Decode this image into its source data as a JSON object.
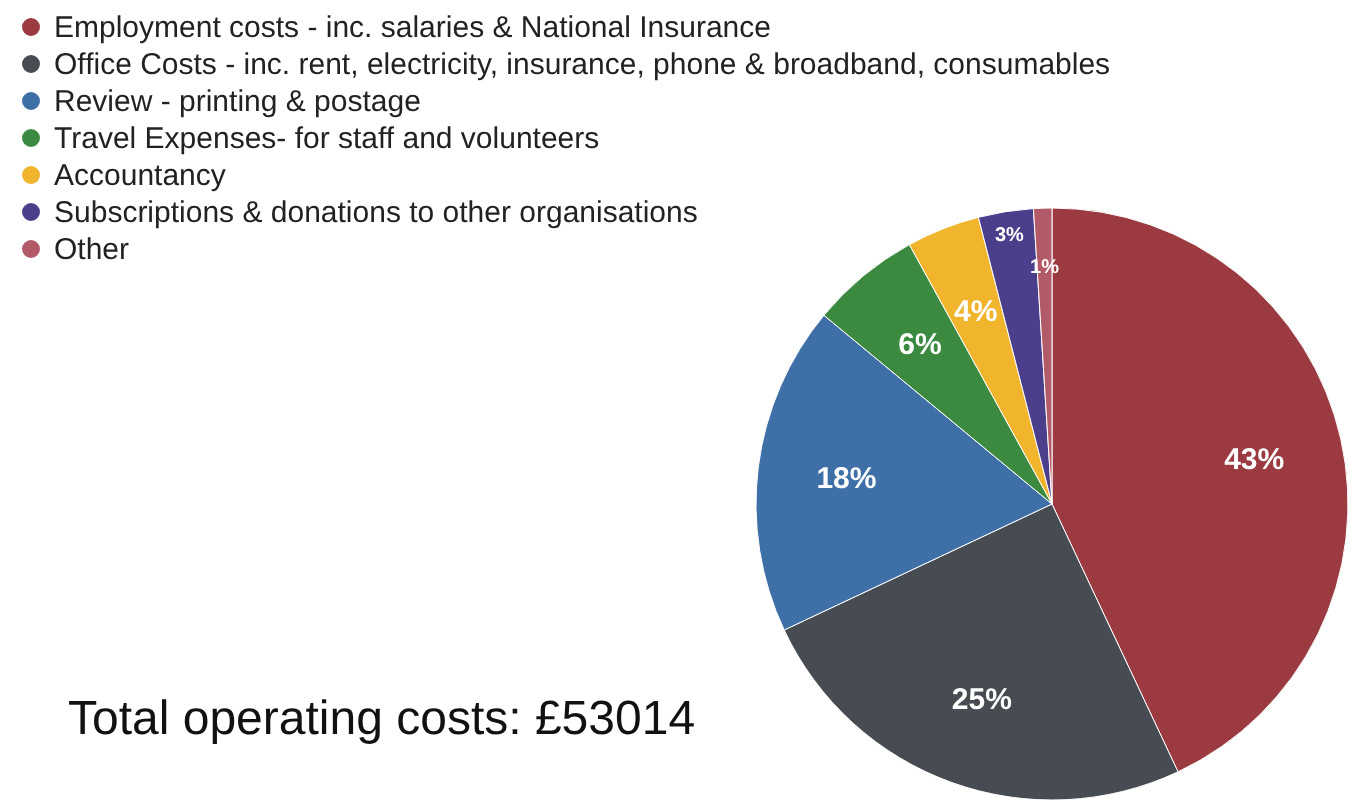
{
  "chart_data": {
    "type": "pie",
    "categories": [
      "Employment costs - inc. salaries & National Insurance",
      "Office Costs - inc. rent, electricity, insurance, phone & broadband, consumables",
      "Review - printing & postage",
      "Travel Expenses- for staff and volunteers",
      "Accountancy",
      "Subscriptions & donations to other organisations",
      "Other"
    ],
    "values": [
      43,
      25,
      18,
      6,
      4,
      3,
      1
    ],
    "colors": [
      "#9b3a41",
      "#474c52",
      "#3e6fa6",
      "#3b8a3f",
      "#f0b42d",
      "#4b3f8c",
      "#b35a68"
    ],
    "value_labels": [
      "43%",
      "25%",
      "18%",
      "6%",
      "4%",
      "3%",
      "1%"
    ],
    "legend": "top left",
    "annotations": [
      "Total operating costs: £53014"
    ]
  }
}
